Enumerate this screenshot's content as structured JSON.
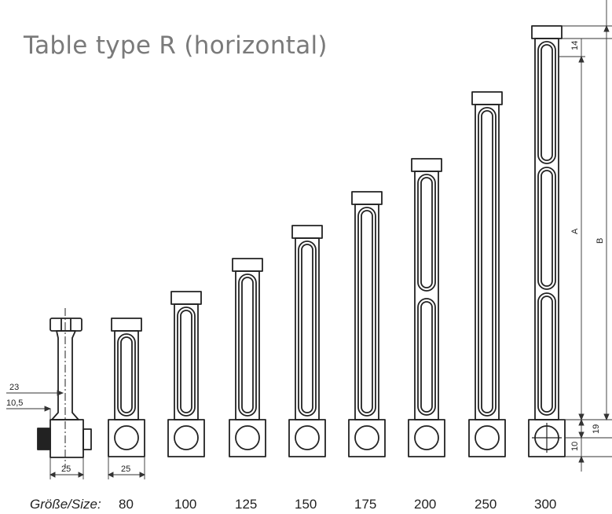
{
  "title": "Table type R (horizontal)",
  "size_caption": "Größe/Size:",
  "sizes": [
    "80",
    "100",
    "125",
    "150",
    "175",
    "200",
    "250",
    "300"
  ],
  "dimensions": {
    "d23": "23",
    "d10_5": "10,5",
    "d25_side": "25",
    "d25_front": "25",
    "dA": "A",
    "dB": "B",
    "d19": "19",
    "d10": "10",
    "d14": "14"
  }
}
